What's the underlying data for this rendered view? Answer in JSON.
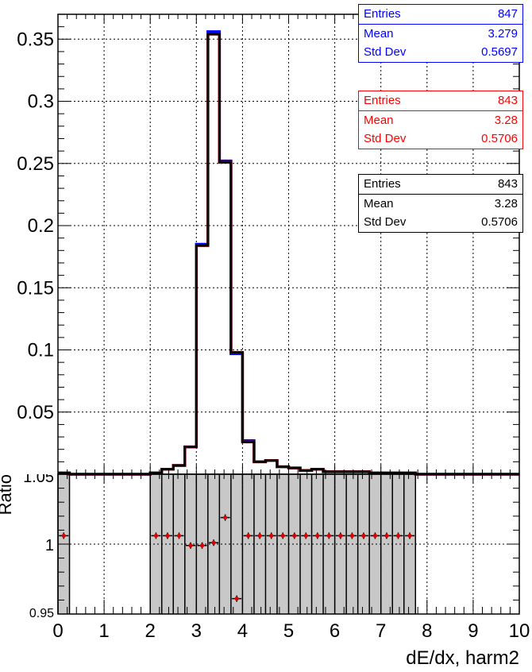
{
  "chart_data": [
    {
      "type": "step-histogram",
      "panel": "upper",
      "xlim": [
        0,
        10
      ],
      "ylim": [
        0,
        0.37
      ],
      "yticks": [
        "0.05",
        "0.1",
        "0.15",
        "0.2",
        "0.25",
        "0.3",
        "0.35"
      ],
      "grid": true,
      "bin_edges": [
        0,
        0.25,
        0.5,
        0.75,
        1.0,
        1.25,
        1.5,
        1.75,
        2.0,
        2.25,
        2.5,
        2.75,
        3.0,
        3.25,
        3.5,
        3.75,
        4.0,
        4.25,
        4.5,
        4.75,
        5.0,
        5.25,
        5.5,
        5.75,
        6.0,
        6.25,
        6.5,
        6.75,
        7.0,
        7.25,
        7.5,
        7.75,
        8.0,
        8.25,
        8.5,
        8.75,
        9.0,
        9.25,
        9.5,
        9.75,
        10.0
      ],
      "series": [
        {
          "color": "#0000ff",
          "values": [
            0.001,
            0,
            0,
            0,
            0,
            0,
            0,
            0,
            0.001,
            0.004,
            0.007,
            0.022,
            0.185,
            0.356,
            0.252,
            0.097,
            0.027,
            0.01,
            0.011,
            0.006,
            0.005,
            0.003,
            0.004,
            0.002,
            0.002,
            0.002,
            0.002,
            0.001,
            0.001,
            0.001,
            0.001,
            0,
            0,
            0,
            0,
            0,
            0,
            0,
            0,
            0
          ]
        },
        {
          "color": "#ff0000",
          "values": [
            0.001,
            0,
            0,
            0,
            0,
            0,
            0,
            0,
            0.001,
            0.004,
            0.007,
            0.022,
            0.184,
            0.354,
            0.251,
            0.098,
            0.026,
            0.01,
            0.011,
            0.006,
            0.005,
            0.003,
            0.004,
            0.002,
            0.002,
            0.002,
            0.002,
            0.001,
            0.001,
            0.001,
            0.001,
            0,
            0,
            0,
            0,
            0,
            0,
            0,
            0,
            0
          ]
        },
        {
          "color": "#000000",
          "values": [
            0.001,
            0,
            0,
            0,
            0,
            0,
            0,
            0,
            0.001,
            0.004,
            0.007,
            0.022,
            0.184,
            0.354,
            0.251,
            0.098,
            0.026,
            0.01,
            0.011,
            0.006,
            0.005,
            0.003,
            0.004,
            0.002,
            0.002,
            0.002,
            0.002,
            0.001,
            0.001,
            0.001,
            0.001,
            0,
            0,
            0,
            0,
            0,
            0,
            0,
            0,
            0
          ]
        }
      ]
    },
    {
      "type": "ratio",
      "panel": "lower",
      "ylabel": "Ratio",
      "xlabel": "dE/dx, harm2",
      "xlim": [
        0,
        10
      ],
      "ylim": [
        0.95,
        1.05
      ],
      "yticks": [
        "0.95",
        "1",
        "1.05"
      ],
      "xticks": [
        "0",
        "1",
        "2",
        "3",
        "4",
        "5",
        "6",
        "7",
        "8",
        "9",
        "10"
      ],
      "grid": true,
      "band_color": "#c8c8c8",
      "band_regions": [
        [
          0.0,
          0.25
        ],
        [
          2.0,
          7.75
        ]
      ],
      "points": [
        {
          "x": 0.125,
          "y": 1.006
        },
        {
          "x": 2.125,
          "y": 1.006
        },
        {
          "x": 2.375,
          "y": 1.006
        },
        {
          "x": 2.625,
          "y": 1.006
        },
        {
          "x": 2.875,
          "y": 0.999
        },
        {
          "x": 3.125,
          "y": 0.999
        },
        {
          "x": 3.375,
          "y": 1.001
        },
        {
          "x": 3.625,
          "y": 1.019
        },
        {
          "x": 3.875,
          "y": 0.961
        },
        {
          "x": 4.125,
          "y": 1.006
        },
        {
          "x": 4.375,
          "y": 1.006
        },
        {
          "x": 4.625,
          "y": 1.006
        },
        {
          "x": 4.875,
          "y": 1.006
        },
        {
          "x": 5.125,
          "y": 1.006
        },
        {
          "x": 5.375,
          "y": 1.006
        },
        {
          "x": 5.625,
          "y": 1.006
        },
        {
          "x": 5.875,
          "y": 1.006
        },
        {
          "x": 6.125,
          "y": 1.006
        },
        {
          "x": 6.375,
          "y": 1.006
        },
        {
          "x": 6.625,
          "y": 1.006
        },
        {
          "x": 6.875,
          "y": 1.006
        },
        {
          "x": 7.125,
          "y": 1.006
        },
        {
          "x": 7.375,
          "y": 1.006
        },
        {
          "x": 7.625,
          "y": 1.006
        }
      ]
    }
  ],
  "stats_boxes": [
    {
      "color": "#0000ff",
      "rows": [
        {
          "label": "Entries",
          "value": "847"
        },
        {
          "label": "Mean",
          "value": "3.279"
        },
        {
          "label": "Std Dev",
          "value": "0.5697"
        }
      ]
    },
    {
      "color": "#ff0000",
      "rows": [
        {
          "label": "Entries",
          "value": "843"
        },
        {
          "label": "Mean",
          "value": "3.28"
        },
        {
          "label": "Std Dev",
          "value": "0.5706"
        }
      ]
    },
    {
      "color": "#000000",
      "rows": [
        {
          "label": "Entries",
          "value": "843"
        },
        {
          "label": "Mean",
          "value": "3.28"
        },
        {
          "label": "Std Dev",
          "value": "0.5706"
        }
      ]
    }
  ]
}
